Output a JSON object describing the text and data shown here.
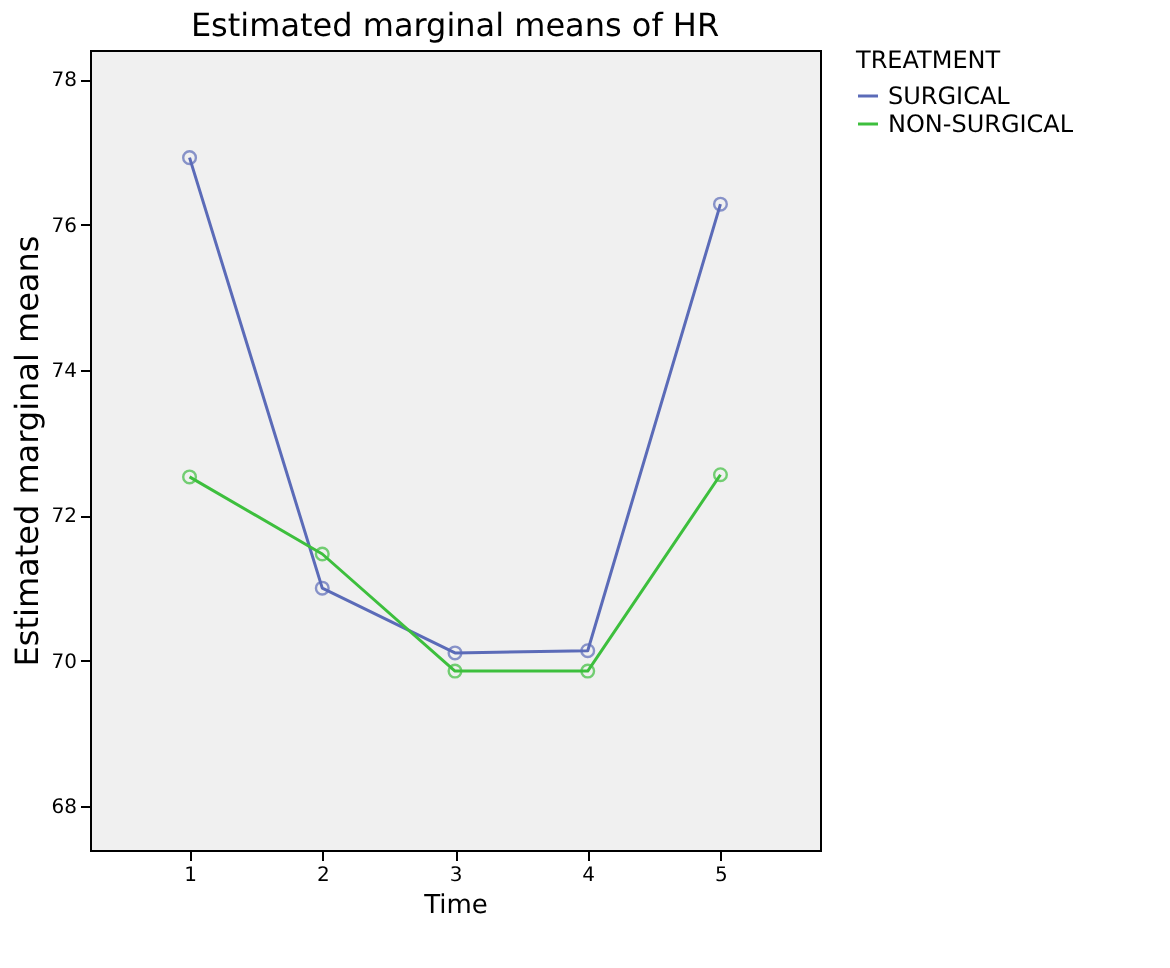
{
  "chart_data": {
    "type": "line",
    "title": "Estimated marginal means of HR",
    "xlabel": "Time",
    "ylabel": "Estimated marginal means",
    "legend_title": "TREATMENT",
    "categories": [
      "1",
      "2",
      "3",
      "4",
      "5"
    ],
    "series": [
      {
        "name": "SURGICAL",
        "color": "#5b6bb8",
        "values": [
          76.92,
          71.0,
          70.11,
          70.14,
          76.28
        ]
      },
      {
        "name": "NON-SURGICAL",
        "color": "#3dbf3d",
        "values": [
          72.53,
          71.47,
          69.86,
          69.86,
          72.56
        ]
      }
    ],
    "ylim": [
      67.4,
      78.4
    ],
    "yticks": [
      68,
      70,
      72,
      74,
      76,
      78
    ],
    "grid": false,
    "legend": "top right",
    "marker": "circle",
    "line_style": "solid"
  }
}
